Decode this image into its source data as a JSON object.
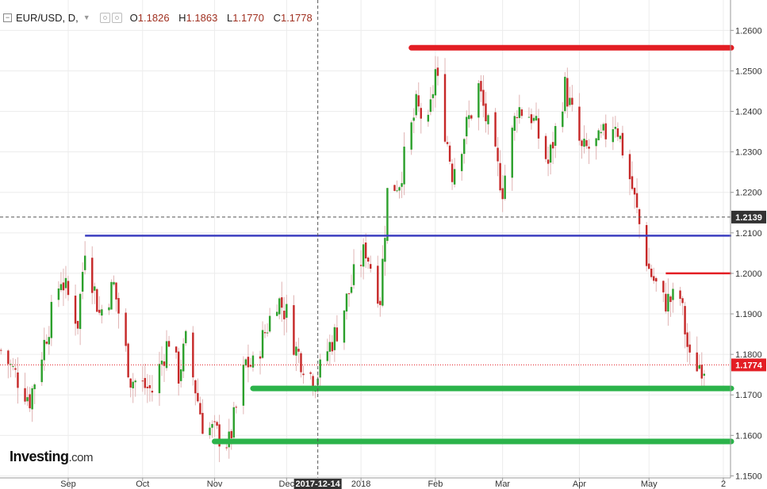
{
  "header": {
    "collapse_glyph": "−",
    "symbol": "EUR/USD, D,",
    "caret": "▼",
    "o_label": "O",
    "o_value": "1.1826",
    "h_label": "H",
    "h_value": "1.1863",
    "l_label": "L",
    "l_value": "1.1770",
    "c_label": "C",
    "c_value": "1.1778"
  },
  "logo": {
    "name": "Investing",
    "suffix": ".com"
  },
  "colors": {
    "up": "#2ca02c",
    "down": "#c62828",
    "wick": "#e0b4b4",
    "resistance": "#e31e24",
    "support": "#2bb34a",
    "pivot": "#3c3fc0",
    "current_price_bg": "#e31e24",
    "crosshair": "#555555"
  },
  "chart_data": {
    "type": "candlestick",
    "instrument": "EUR/USD",
    "timeframe": "D",
    "ylim": [
      1.1495,
      1.2675
    ],
    "yticks": [
      "1.1500",
      "1.1600",
      "1.1700",
      "1.1800",
      "1.1900",
      "1.2000",
      "1.2100",
      "1.2200",
      "1.2300",
      "1.2400",
      "1.2500",
      "1.2600"
    ],
    "xticks": [
      {
        "label": "Sep",
        "date": "2017-09-01"
      },
      {
        "label": "Oct",
        "date": "2017-10-02"
      },
      {
        "label": "Nov",
        "date": "2017-11-01"
      },
      {
        "label": "Dec",
        "date": "2017-12-01"
      },
      {
        "label": "2018",
        "date": "2018-01-01"
      },
      {
        "label": "Feb",
        "date": "2018-02-01"
      },
      {
        "label": "Mar",
        "date": "2018-03-01"
      },
      {
        "label": "Apr",
        "date": "2018-04-02"
      },
      {
        "label": "May",
        "date": "2018-05-01"
      },
      {
        "label": "2",
        "date": "2018-06-01"
      }
    ],
    "crosshair": {
      "date_label": "2017-12-14",
      "price_label": "1.2139",
      "price": 1.2139
    },
    "current_price": {
      "label": "1.1774",
      "price": 1.1774
    },
    "levels": [
      {
        "name": "resistance-top",
        "price": 1.2557,
        "from": "2018-01-22",
        "to": "2018-06-01",
        "color": "#e31e24",
        "weight": "thick"
      },
      {
        "name": "resistance-minor",
        "price": 1.2,
        "from": "2018-05-08",
        "to": "2018-06-01",
        "color": "#e31e24",
        "weight": "thin"
      },
      {
        "name": "pivot-line",
        "price": 1.2093,
        "from": "2017-09-08",
        "to": "2018-06-01",
        "color": "#3c3fc0",
        "weight": "thin"
      },
      {
        "name": "support-upper",
        "price": 1.1716,
        "from": "2017-11-17",
        "to": "2018-06-01",
        "color": "#2bb34a",
        "weight": "thick"
      },
      {
        "name": "support-lower",
        "price": 1.1585,
        "from": "2017-11-01",
        "to": "2018-06-01",
        "color": "#2bb34a",
        "weight": "thick"
      }
    ],
    "keypoints": [
      [
        "2017-08-04",
        1.181
      ],
      [
        "2017-08-16",
        1.169
      ],
      [
        "2017-08-29",
        1.199
      ],
      [
        "2017-09-05",
        1.188
      ],
      [
        "2017-09-08",
        1.207
      ],
      [
        "2017-09-14",
        1.19
      ],
      [
        "2017-09-20",
        1.197
      ],
      [
        "2017-09-27",
        1.174
      ],
      [
        "2017-10-06",
        1.171
      ],
      [
        "2017-10-13",
        1.184
      ],
      [
        "2017-10-17",
        1.175
      ],
      [
        "2017-10-20",
        1.183
      ],
      [
        "2017-10-27",
        1.163
      ],
      [
        "2017-11-07",
        1.158
      ],
      [
        "2017-11-14",
        1.178
      ],
      [
        "2017-11-17",
        1.177
      ],
      [
        "2017-11-27",
        1.194
      ],
      [
        "2017-12-01",
        1.19
      ],
      [
        "2017-12-05",
        1.181
      ],
      [
        "2017-12-12",
        1.174
      ],
      [
        "2017-12-15",
        1.176
      ],
      [
        "2017-12-18",
        1.181
      ],
      [
        "2017-12-22",
        1.186
      ],
      [
        "2017-12-29",
        1.199
      ],
      [
        "2018-01-03",
        1.206
      ],
      [
        "2018-01-09",
        1.194
      ],
      [
        "2018-01-12",
        1.22
      ],
      [
        "2018-01-17",
        1.223
      ],
      [
        "2018-01-24",
        1.241
      ],
      [
        "2018-01-29",
        1.236
      ],
      [
        "2018-02-01",
        1.25
      ],
      [
        "2018-02-08",
        1.225
      ],
      [
        "2018-02-16",
        1.24
      ],
      [
        "2018-02-19",
        1.246
      ],
      [
        "2018-02-26",
        1.228
      ],
      [
        "2018-03-01",
        1.221
      ],
      [
        "2018-03-07",
        1.241
      ],
      [
        "2018-03-13",
        1.239
      ],
      [
        "2018-03-20",
        1.227
      ],
      [
        "2018-03-27",
        1.246
      ],
      [
        "2018-04-03",
        1.23
      ],
      [
        "2018-04-10",
        1.232
      ],
      [
        "2018-04-17",
        1.238
      ],
      [
        "2018-04-24",
        1.221
      ],
      [
        "2018-04-27",
        1.212
      ],
      [
        "2018-05-01",
        1.201
      ],
      [
        "2018-05-07",
        1.193
      ],
      [
        "2018-05-14",
        1.194
      ],
      [
        "2018-05-18",
        1.178
      ],
      [
        "2018-05-24",
        1.1774
      ]
    ]
  }
}
